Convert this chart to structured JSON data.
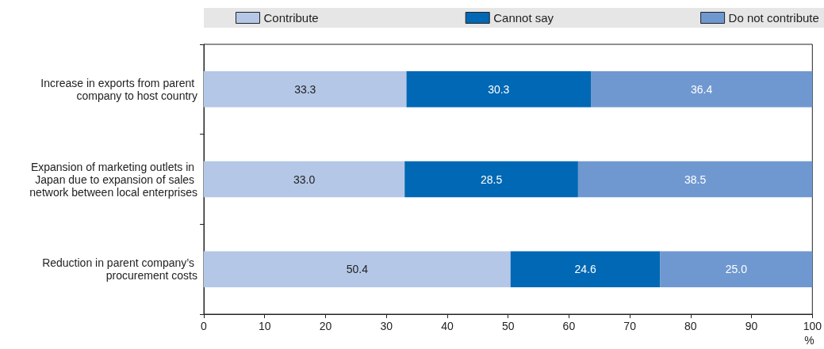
{
  "chart_data": {
    "type": "bar",
    "orientation": "horizontal",
    "stacked": true,
    "xlabel": "%",
    "categories": [
      "Increase in exports from parent company to host country",
      "Expansion of marketing outlets in Japan due to expansion of sales network between local enterprises",
      "Reduction in parent company’s procurement costs"
    ],
    "series": [
      {
        "name": "Contribute",
        "color": "#b4c7e7",
        "values": [
          33.3,
          33.0,
          50.4
        ],
        "value_labels": [
          "33.3",
          "33.0",
          "50.4"
        ]
      },
      {
        "name": "Cannot say",
        "color": "#0068b4",
        "values": [
          30.3,
          28.5,
          24.6
        ],
        "value_labels": [
          "30.3",
          "28.5",
          "24.6"
        ]
      },
      {
        "name": "Do not contribute",
        "color": "#7098d0",
        "values": [
          36.4,
          38.5,
          25.0
        ],
        "value_labels": [
          "36.4",
          "38.5",
          "25.0"
        ]
      }
    ],
    "xlim": [
      0,
      100
    ],
    "xticks": [
      0,
      10,
      20,
      30,
      40,
      50,
      60,
      70,
      80,
      90,
      100
    ],
    "grid": false,
    "legend": "top"
  }
}
